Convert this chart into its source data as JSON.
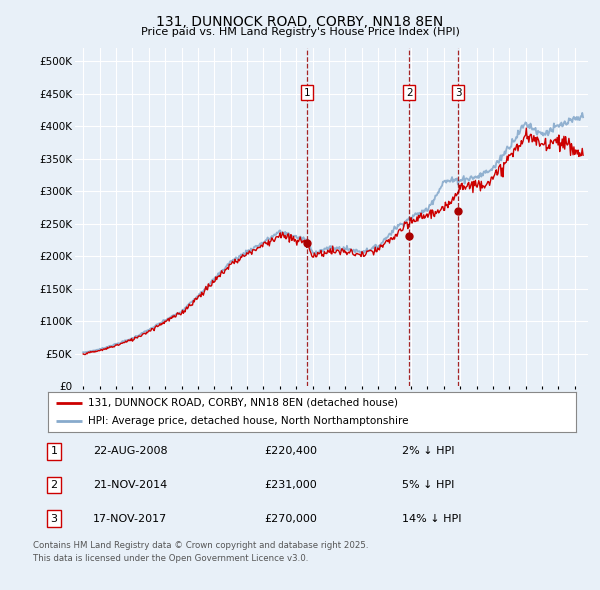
{
  "title": "131, DUNNOCK ROAD, CORBY, NN18 8EN",
  "subtitle": "Price paid vs. HM Land Registry's House Price Index (HPI)",
  "ylabel_ticks": [
    0,
    50000,
    100000,
    150000,
    200000,
    250000,
    300000,
    350000,
    400000,
    450000,
    500000
  ],
  "ylim": [
    0,
    520000
  ],
  "xlim_start": 1994.5,
  "xlim_end": 2025.8,
  "background_color": "#e8f0f8",
  "plot_bg_color": "#e8f0f8",
  "grid_color": "#ffffff",
  "line_red_color": "#cc0000",
  "line_blue_color": "#88aacc",
  "sale_marker_color": "#aa0000",
  "sale_vline_color": "#990000",
  "legend_box_color": "#ffffff",
  "sale1_x": 2008.64,
  "sale1_y": 220400,
  "sale1_label": "22-AUG-2008",
  "sale1_price": "£220,400",
  "sale1_hpi": "2% ↓ HPI",
  "sale2_x": 2014.9,
  "sale2_y": 231000,
  "sale2_label": "21-NOV-2014",
  "sale2_price": "£231,000",
  "sale2_hpi": "5% ↓ HPI",
  "sale3_x": 2017.88,
  "sale3_y": 270000,
  "sale3_label": "17-NOV-2017",
  "sale3_price": "£270,000",
  "sale3_hpi": "14% ↓ HPI",
  "legend1": "131, DUNNOCK ROAD, CORBY, NN18 8EN (detached house)",
  "legend2": "HPI: Average price, detached house, North Northamptonshire",
  "footer1": "Contains HM Land Registry data © Crown copyright and database right 2025.",
  "footer2": "This data is licensed under the Open Government Licence v3.0."
}
